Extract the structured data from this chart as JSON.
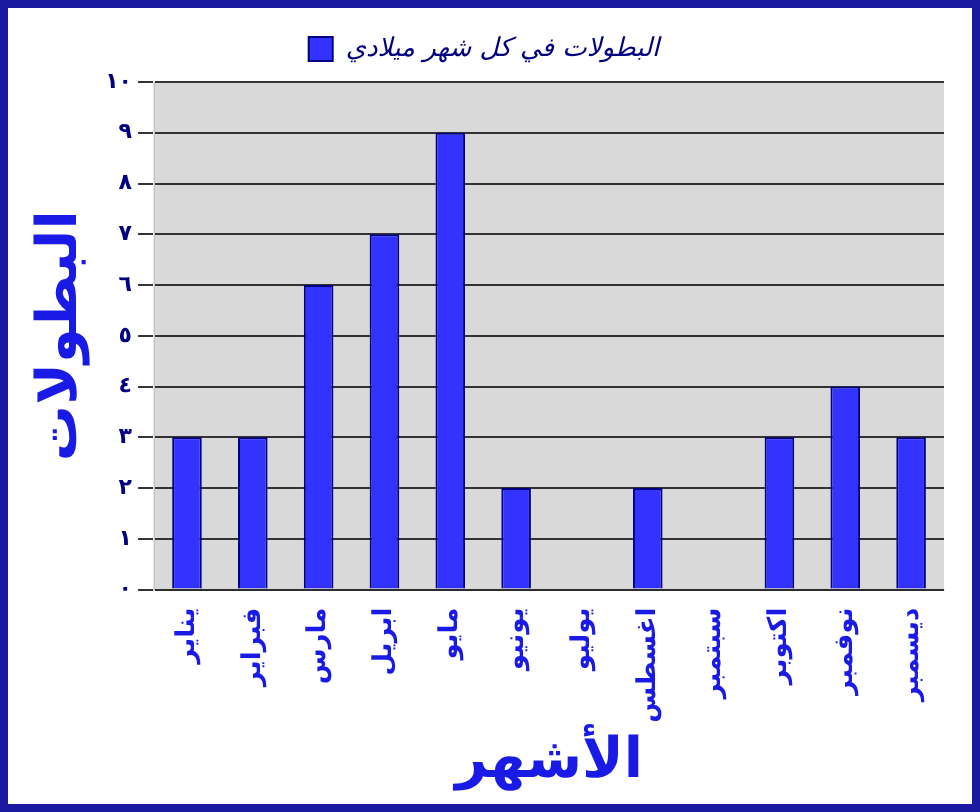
{
  "chart_data": {
    "type": "bar",
    "xlabel": "الأشهر",
    "ylabel": "البطولات",
    "categories": [
      "يناير",
      "فبراير",
      "مارس",
      "ابريل",
      "مايو",
      "يونيو",
      "يوليو",
      "اغسطس",
      "سبتمبر",
      "اكتوبر",
      "نوفمبر",
      "ديسمبر"
    ],
    "series": [
      {
        "name": "البطولات في كل شهر ميلادي",
        "color": "#3333ff",
        "values": [
          3,
          3,
          6,
          7,
          9,
          2,
          0,
          2,
          0,
          3,
          4,
          3
        ]
      }
    ],
    "ylim": [
      0,
      10
    ],
    "yticks": [
      {
        "value": 0,
        "label": "٠"
      },
      {
        "value": 1,
        "label": "١"
      },
      {
        "value": 2,
        "label": "٢"
      },
      {
        "value": 3,
        "label": "٣"
      },
      {
        "value": 4,
        "label": "٤"
      },
      {
        "value": 5,
        "label": "٥"
      },
      {
        "value": 6,
        "label": "٦"
      },
      {
        "value": 7,
        "label": "٧"
      },
      {
        "value": 8,
        "label": "٨"
      },
      {
        "value": 9,
        "label": "٩"
      },
      {
        "value": 10,
        "label": "١٠"
      }
    ],
    "grid": "y",
    "legend": "top"
  }
}
